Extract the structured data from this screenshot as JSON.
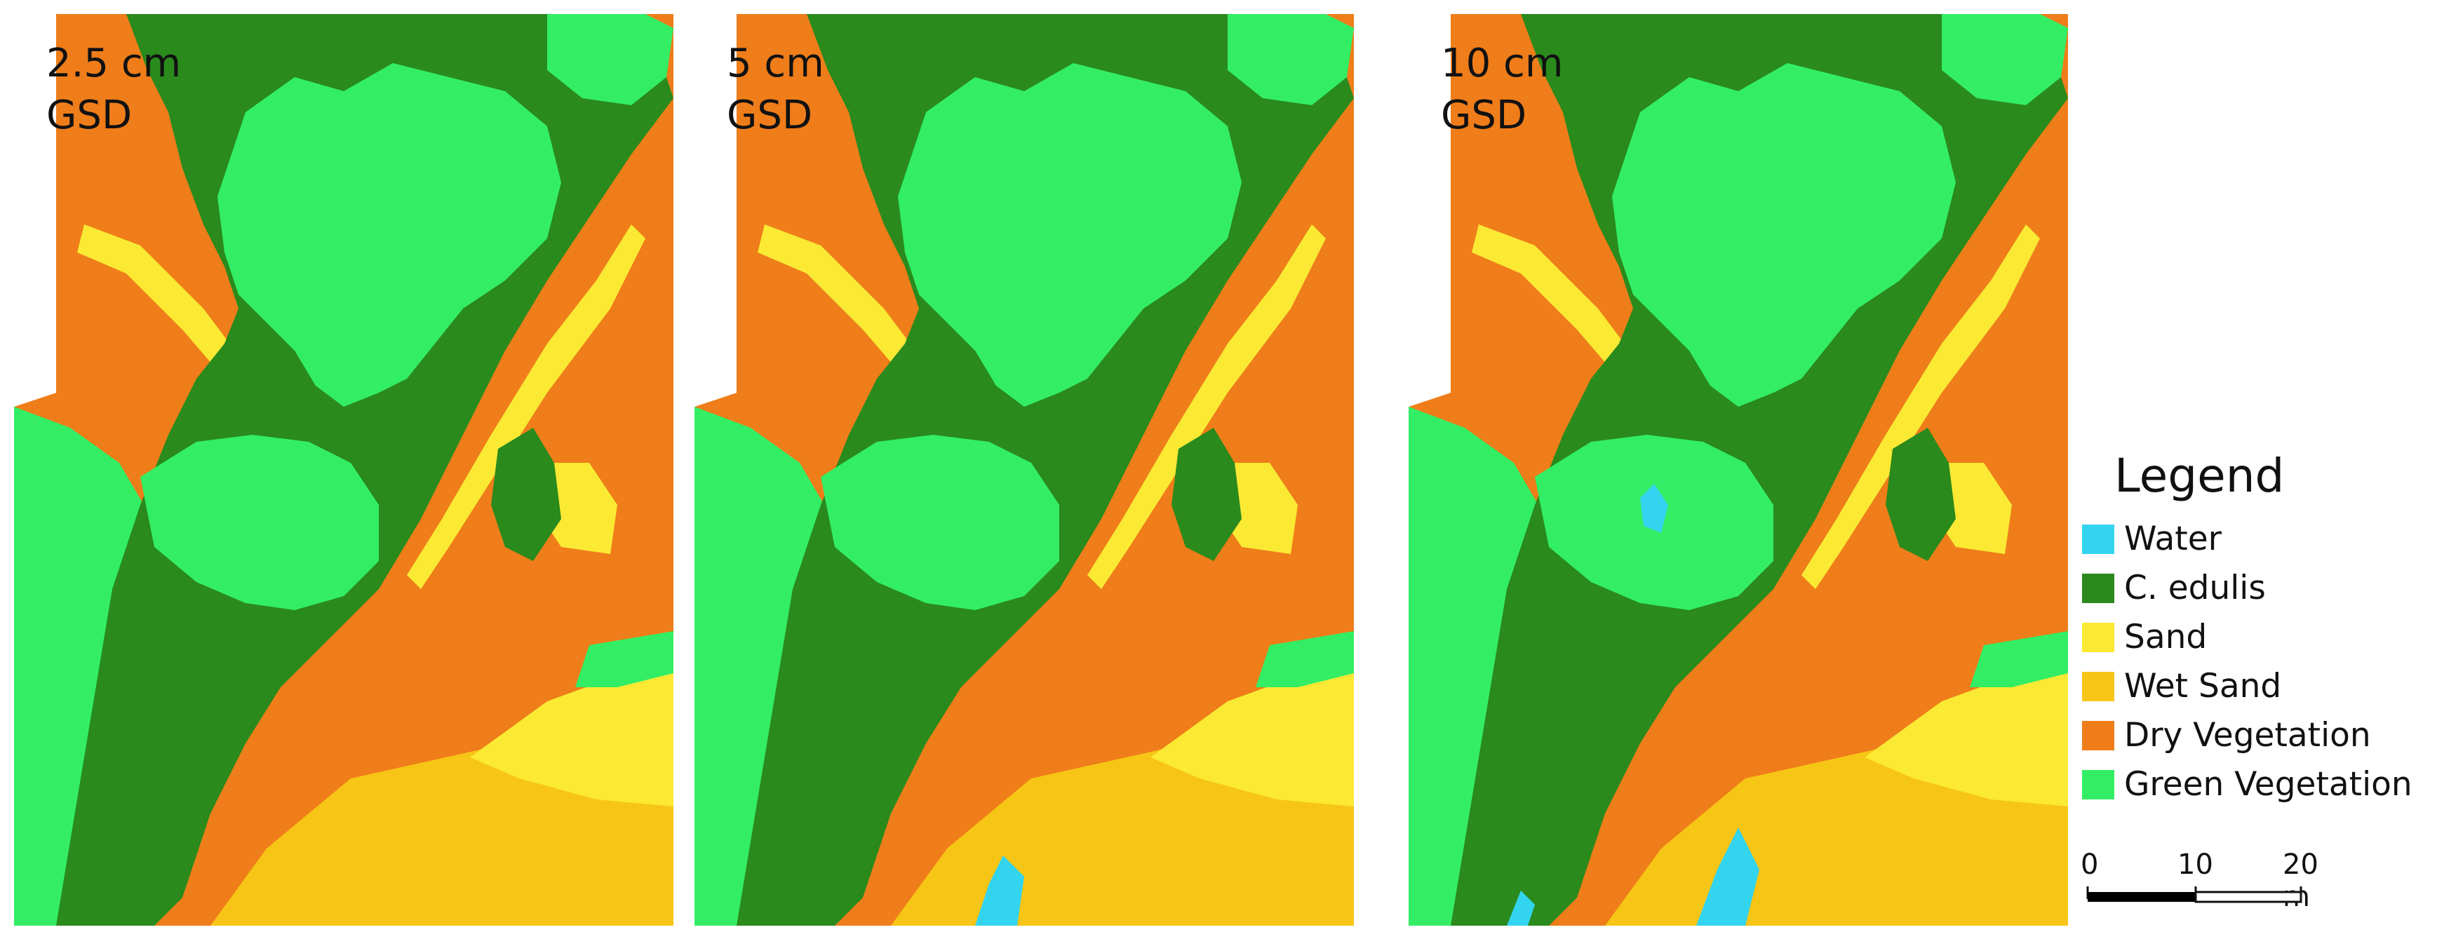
{
  "panels": [
    {
      "resolution": "2.5 cm",
      "unit_label": "GSD"
    },
    {
      "resolution": "5 cm",
      "unit_label": "GSD"
    },
    {
      "resolution": "10 cm",
      "unit_label": "GSD"
    }
  ],
  "legend": {
    "title": "Legend",
    "items": [
      {
        "label": "Water",
        "color": "#33d4ef"
      },
      {
        "label": "C. edulis",
        "color": "#2a8a1c"
      },
      {
        "label": "Sand",
        "color": "#fbe934"
      },
      {
        "label": "Wet Sand",
        "color": "#f7c516"
      },
      {
        "label": "Dry Vegetation",
        "color": "#ef7d19"
      },
      {
        "label": "Green Vegetation",
        "color": "#33ee64"
      }
    ]
  },
  "scalebar": {
    "ticks": [
      "0",
      "10",
      "20 m"
    ]
  }
}
